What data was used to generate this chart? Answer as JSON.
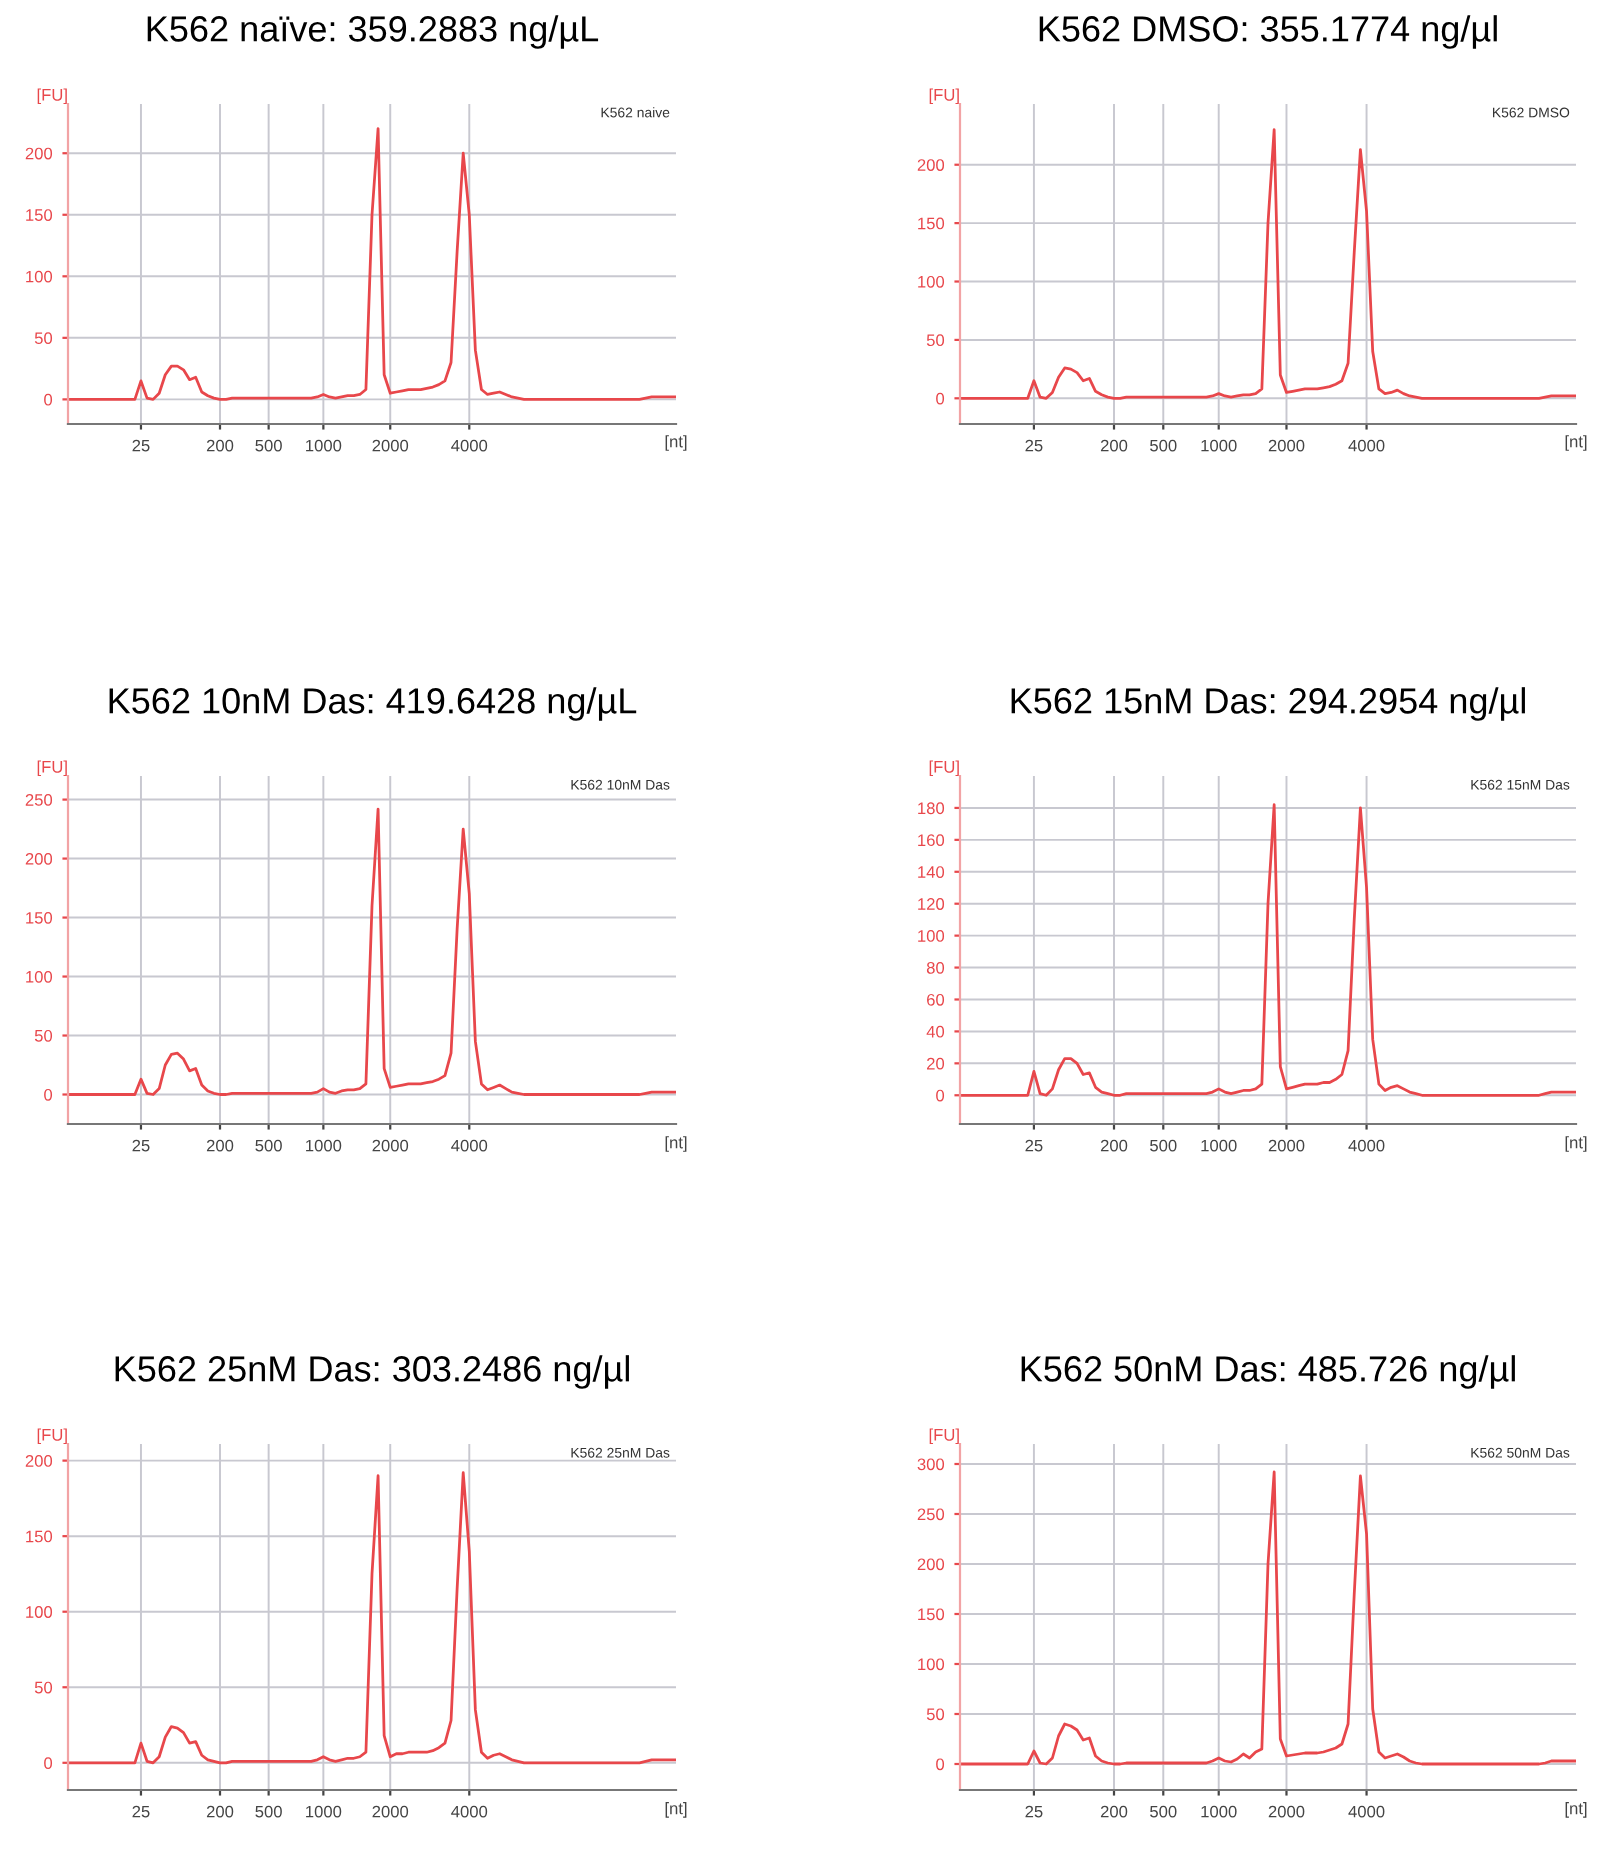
{
  "chart_data": [
    {
      "type": "line",
      "title": "K562 naïve: 359.2883 ng/µL",
      "ylabel": "[FU]",
      "xlabel": "[nt]",
      "annotations": [
        "K562 naive"
      ],
      "ylim": [
        -20,
        240
      ],
      "yticks": [
        0,
        50,
        100,
        150,
        200
      ],
      "grid": true,
      "categories": [
        null,
        null,
        null,
        null,
        null,
        null,
        null,
        null,
        null,
        null,
        null,
        null,
        "25",
        null,
        null,
        null,
        null,
        null,
        null,
        null,
        null,
        null,
        null,
        null,
        null,
        "200",
        null,
        null,
        null,
        null,
        null,
        null,
        null,
        "500",
        null,
        null,
        null,
        null,
        null,
        null,
        null,
        null,
        "1000",
        null,
        null,
        null,
        null,
        null,
        null,
        null,
        null,
        null,
        null,
        "2000",
        null,
        null,
        null,
        null,
        null,
        null,
        null,
        null,
        null,
        null,
        null,
        null,
        "4000",
        null,
        null,
        null,
        null,
        null,
        null,
        null,
        null,
        null,
        null,
        null,
        null,
        null,
        null,
        null,
        null,
        null,
        null,
        null,
        null,
        null,
        null,
        null,
        null,
        null,
        null,
        null,
        null,
        null,
        null,
        null,
        null,
        null,
        null
      ],
      "series": [
        {
          "color": "#e8474b",
          "values": [
            0,
            0,
            0,
            0,
            0,
            0,
            0,
            0,
            0,
            0,
            0,
            0,
            15,
            1,
            0,
            5,
            20,
            27,
            27,
            24,
            16,
            18,
            6,
            3,
            1,
            0,
            0,
            1,
            1,
            1,
            1,
            1,
            1,
            1,
            1,
            1,
            1,
            1,
            1,
            1,
            1,
            2,
            4,
            2,
            1,
            2,
            3,
            3,
            4,
            8,
            150,
            220,
            20,
            5,
            6,
            7,
            8,
            8,
            8,
            9,
            10,
            12,
            15,
            30,
            120,
            200,
            150,
            40,
            8,
            4,
            5,
            6,
            4,
            2,
            1,
            0,
            0,
            0,
            0,
            0,
            0,
            0,
            0,
            0,
            0,
            0,
            0,
            0,
            0,
            0,
            0,
            0,
            0,
            0,
            0,
            1,
            2,
            2,
            2,
            2,
            2
          ]
        }
      ]
    },
    {
      "type": "line",
      "title": "K562 DMSO: 355.1774 ng/µl",
      "ylabel": "[FU]",
      "xlabel": "[nt]",
      "annotations": [
        "K562 DMSO"
      ],
      "ylim": [
        -22,
        252
      ],
      "yticks": [
        0,
        50,
        100,
        150,
        200
      ],
      "grid": true,
      "categories": [
        null,
        null,
        null,
        null,
        null,
        null,
        null,
        null,
        null,
        null,
        null,
        null,
        "25",
        null,
        null,
        null,
        null,
        null,
        null,
        null,
        null,
        null,
        null,
        null,
        null,
        "200",
        null,
        null,
        null,
        null,
        null,
        null,
        null,
        "500",
        null,
        null,
        null,
        null,
        null,
        null,
        null,
        null,
        "1000",
        null,
        null,
        null,
        null,
        null,
        null,
        null,
        null,
        null,
        null,
        "2000",
        null,
        null,
        null,
        null,
        null,
        null,
        null,
        null,
        null,
        null,
        null,
        null,
        "4000",
        null,
        null,
        null,
        null,
        null,
        null,
        null,
        null,
        null,
        null,
        null,
        null,
        null,
        null,
        null,
        null,
        null,
        null,
        null,
        null,
        null,
        null,
        null,
        null,
        null,
        null,
        null,
        null,
        null,
        null,
        null,
        null,
        null,
        null
      ],
      "series": [
        {
          "color": "#e8474b",
          "values": [
            0,
            0,
            0,
            0,
            0,
            0,
            0,
            0,
            0,
            0,
            0,
            0,
            15,
            1,
            0,
            5,
            18,
            26,
            25,
            22,
            15,
            17,
            6,
            3,
            1,
            0,
            0,
            1,
            1,
            1,
            1,
            1,
            1,
            1,
            1,
            1,
            1,
            1,
            1,
            1,
            1,
            2,
            4,
            2,
            1,
            2,
            3,
            3,
            4,
            8,
            150,
            230,
            20,
            5,
            6,
            7,
            8,
            8,
            8,
            9,
            10,
            12,
            15,
            30,
            125,
            213,
            160,
            40,
            8,
            4,
            5,
            7,
            4,
            2,
            1,
            0,
            0,
            0,
            0,
            0,
            0,
            0,
            0,
            0,
            0,
            0,
            0,
            0,
            0,
            0,
            0,
            0,
            0,
            0,
            0,
            1,
            2,
            2,
            2,
            2,
            2
          ]
        }
      ]
    },
    {
      "type": "line",
      "title": "K562 10nM Das: 419.6428 ng/µL",
      "ylabel": "[FU]",
      "xlabel": "[nt]",
      "annotations": [
        "K562 10nM Das"
      ],
      "ylim": [
        -25,
        270
      ],
      "yticks": [
        0,
        50,
        100,
        150,
        200,
        250
      ],
      "grid": true,
      "categories": [
        null,
        null,
        null,
        null,
        null,
        null,
        null,
        null,
        null,
        null,
        null,
        null,
        "25",
        null,
        null,
        null,
        null,
        null,
        null,
        null,
        null,
        null,
        null,
        null,
        null,
        "200",
        null,
        null,
        null,
        null,
        null,
        null,
        null,
        "500",
        null,
        null,
        null,
        null,
        null,
        null,
        null,
        null,
        "1000",
        null,
        null,
        null,
        null,
        null,
        null,
        null,
        null,
        null,
        null,
        "2000",
        null,
        null,
        null,
        null,
        null,
        null,
        null,
        null,
        null,
        null,
        null,
        null,
        "4000",
        null,
        null,
        null,
        null,
        null,
        null,
        null,
        null,
        null,
        null,
        null,
        null,
        null,
        null,
        null,
        null,
        null,
        null,
        null,
        null,
        null,
        null,
        null,
        null,
        null,
        null,
        null,
        null,
        null,
        null,
        null,
        null,
        null,
        null
      ],
      "series": [
        {
          "color": "#e8474b",
          "values": [
            0,
            0,
            0,
            0,
            0,
            0,
            0,
            0,
            0,
            0,
            0,
            0,
            13,
            1,
            0,
            5,
            25,
            34,
            35,
            30,
            20,
            22,
            8,
            3,
            1,
            0,
            0,
            1,
            1,
            1,
            1,
            1,
            1,
            1,
            1,
            1,
            1,
            1,
            1,
            1,
            1,
            2,
            5,
            2,
            1,
            3,
            4,
            4,
            5,
            9,
            160,
            242,
            22,
            6,
            7,
            8,
            9,
            9,
            9,
            10,
            11,
            13,
            16,
            35,
            140,
            225,
            170,
            45,
            9,
            4,
            6,
            8,
            5,
            2,
            1,
            0,
            0,
            0,
            0,
            0,
            0,
            0,
            0,
            0,
            0,
            0,
            0,
            0,
            0,
            0,
            0,
            0,
            0,
            0,
            0,
            1,
            2,
            2,
            2,
            2,
            2
          ]
        }
      ]
    },
    {
      "type": "line",
      "title": "K562 15nM Das: 294.2954 ng/µl",
      "ylabel": "[FU]",
      "xlabel": "[nt]",
      "annotations": [
        "K562 15nM Das"
      ],
      "ylim": [
        -18,
        200
      ],
      "yticks": [
        0,
        20,
        40,
        60,
        80,
        100,
        120,
        140,
        160,
        180
      ],
      "grid": true,
      "categories": [
        null,
        null,
        null,
        null,
        null,
        null,
        null,
        null,
        null,
        null,
        null,
        null,
        "25",
        null,
        null,
        null,
        null,
        null,
        null,
        null,
        null,
        null,
        null,
        null,
        null,
        "200",
        null,
        null,
        null,
        null,
        null,
        null,
        null,
        "500",
        null,
        null,
        null,
        null,
        null,
        null,
        null,
        null,
        "1000",
        null,
        null,
        null,
        null,
        null,
        null,
        null,
        null,
        null,
        null,
        "2000",
        null,
        null,
        null,
        null,
        null,
        null,
        null,
        null,
        null,
        null,
        null,
        null,
        "4000",
        null,
        null,
        null,
        null,
        null,
        null,
        null,
        null,
        null,
        null,
        null,
        null,
        null,
        null,
        null,
        null,
        null,
        null,
        null,
        null,
        null,
        null,
        null,
        null,
        null,
        null,
        null,
        null,
        null,
        null,
        null,
        null,
        null,
        null
      ],
      "series": [
        {
          "color": "#e8474b",
          "values": [
            0,
            0,
            0,
            0,
            0,
            0,
            0,
            0,
            0,
            0,
            0,
            0,
            15,
            1,
            0,
            4,
            16,
            23,
            23,
            20,
            13,
            14,
            5,
            2,
            1,
            0,
            0,
            1,
            1,
            1,
            1,
            1,
            1,
            1,
            1,
            1,
            1,
            1,
            1,
            1,
            1,
            2,
            4,
            2,
            1,
            2,
            3,
            3,
            4,
            7,
            120,
            182,
            18,
            4,
            5,
            6,
            7,
            7,
            7,
            8,
            8,
            10,
            13,
            28,
            110,
            180,
            130,
            35,
            7,
            3,
            5,
            6,
            4,
            2,
            1,
            0,
            0,
            0,
            0,
            0,
            0,
            0,
            0,
            0,
            0,
            0,
            0,
            0,
            0,
            0,
            0,
            0,
            0,
            0,
            0,
            1,
            2,
            2,
            2,
            2,
            2
          ]
        }
      ]
    },
    {
      "type": "line",
      "title": "K562 25nM Das: 303.2486 ng/µl",
      "ylabel": "[FU]",
      "xlabel": "[nt]",
      "annotations": [
        "K562 25nM Das"
      ],
      "ylim": [
        -18,
        211
      ],
      "yticks": [
        0,
        50,
        100,
        150,
        200
      ],
      "grid": true,
      "categories": [
        null,
        null,
        null,
        null,
        null,
        null,
        null,
        null,
        null,
        null,
        null,
        null,
        "25",
        null,
        null,
        null,
        null,
        null,
        null,
        null,
        null,
        null,
        null,
        null,
        null,
        "200",
        null,
        null,
        null,
        null,
        null,
        null,
        null,
        "500",
        null,
        null,
        null,
        null,
        null,
        null,
        null,
        null,
        "1000",
        null,
        null,
        null,
        null,
        null,
        null,
        null,
        null,
        null,
        null,
        "2000",
        null,
        null,
        null,
        null,
        null,
        null,
        null,
        null,
        null,
        null,
        null,
        null,
        "4000",
        null,
        null,
        null,
        null,
        null,
        null,
        null,
        null,
        null,
        null,
        null,
        null,
        null,
        null,
        null,
        null,
        null,
        null,
        null,
        null,
        null,
        null,
        null,
        null,
        null,
        null,
        null,
        null,
        null,
        null,
        null,
        null,
        null,
        null
      ],
      "series": [
        {
          "color": "#e8474b",
          "values": [
            0,
            0,
            0,
            0,
            0,
            0,
            0,
            0,
            0,
            0,
            0,
            0,
            13,
            1,
            0,
            4,
            17,
            24,
            23,
            20,
            13,
            14,
            5,
            2,
            1,
            0,
            0,
            1,
            1,
            1,
            1,
            1,
            1,
            1,
            1,
            1,
            1,
            1,
            1,
            1,
            1,
            2,
            4,
            2,
            1,
            2,
            3,
            3,
            4,
            7,
            125,
            190,
            18,
            4,
            6,
            6,
            7,
            7,
            7,
            7,
            8,
            10,
            13,
            28,
            115,
            192,
            140,
            35,
            7,
            3,
            5,
            6,
            4,
            2,
            1,
            0,
            0,
            0,
            0,
            0,
            0,
            0,
            0,
            0,
            0,
            0,
            0,
            0,
            0,
            0,
            0,
            0,
            0,
            0,
            0,
            1,
            2,
            2,
            2,
            2,
            2
          ]
        }
      ]
    },
    {
      "type": "line",
      "title": "K562 50nM Das: 485.726 ng/µl",
      "ylabel": "[FU]",
      "xlabel": "[nt]",
      "annotations": [
        "K562 50nM Das"
      ],
      "ylim": [
        -26,
        320
      ],
      "yticks": [
        0,
        50,
        100,
        150,
        200,
        250,
        300
      ],
      "grid": true,
      "categories": [
        null,
        null,
        null,
        null,
        null,
        null,
        null,
        null,
        null,
        null,
        null,
        null,
        "25",
        null,
        null,
        null,
        null,
        null,
        null,
        null,
        null,
        null,
        null,
        null,
        null,
        "200",
        null,
        null,
        null,
        null,
        null,
        null,
        null,
        "500",
        null,
        null,
        null,
        null,
        null,
        null,
        null,
        null,
        "1000",
        null,
        null,
        null,
        null,
        null,
        null,
        null,
        null,
        null,
        null,
        "2000",
        null,
        null,
        null,
        null,
        null,
        null,
        null,
        null,
        null,
        null,
        null,
        null,
        "4000",
        null,
        null,
        null,
        null,
        null,
        null,
        null,
        null,
        null,
        null,
        null,
        null,
        null,
        null,
        null,
        null,
        null,
        null,
        null,
        null,
        null,
        null,
        null,
        null,
        null,
        null,
        null,
        null,
        null,
        null,
        null,
        null,
        null,
        null
      ],
      "series": [
        {
          "color": "#e8474b",
          "values": [
            0,
            0,
            0,
            0,
            0,
            0,
            0,
            0,
            0,
            0,
            0,
            0,
            13,
            1,
            0,
            6,
            28,
            40,
            38,
            34,
            24,
            26,
            8,
            3,
            1,
            0,
            0,
            1,
            1,
            1,
            1,
            1,
            1,
            1,
            1,
            1,
            1,
            1,
            1,
            1,
            1,
            3,
            6,
            3,
            2,
            5,
            10,
            6,
            12,
            15,
            200,
            292,
            25,
            8,
            9,
            10,
            11,
            11,
            11,
            12,
            14,
            16,
            20,
            40,
            170,
            288,
            230,
            55,
            12,
            6,
            8,
            10,
            7,
            3,
            1,
            0,
            0,
            0,
            0,
            0,
            0,
            0,
            0,
            0,
            0,
            0,
            0,
            0,
            0,
            0,
            0,
            0,
            0,
            0,
            0,
            1,
            3,
            3,
            3,
            3,
            3
          ]
        }
      ]
    }
  ]
}
